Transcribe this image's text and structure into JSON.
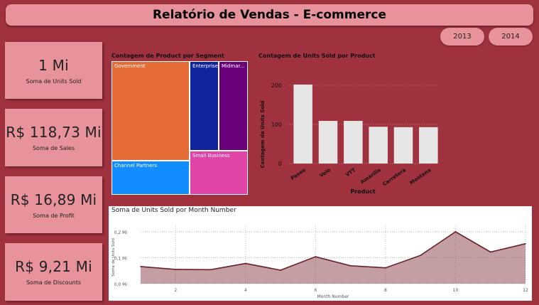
{
  "header": {
    "title": "Relatório de Vendas - E-commerce"
  },
  "filters": {
    "years": [
      "2013",
      "2014"
    ]
  },
  "kpis": [
    {
      "value": "1 Mi",
      "label": "Soma de Units Sold"
    },
    {
      "value": "R$ 118,73 Mi",
      "label": "Soma de  Sales"
    },
    {
      "value": "R$ 16,89 Mi",
      "label": "Soma de Profit"
    },
    {
      "value": "R$ 9,21 Mi",
      "label": "Soma de Discounts"
    }
  ],
  "treemap": {
    "title": "Contagem de Product por Segment",
    "tiles": [
      {
        "label": "Government",
        "color": "#e66c37"
      },
      {
        "label": "Enterprise",
        "color": "#12239e"
      },
      {
        "label": "Midmar...",
        "color": "#6b007b"
      },
      {
        "label": "Channel Partners",
        "color": "#118dff"
      },
      {
        "label": "Small Business",
        "color": "#e044a7"
      }
    ]
  },
  "bar_panel": {
    "title": "Contagem de Units Sold por Product"
  },
  "line_panel": {
    "title": "Soma de Units Sold por Month Number"
  },
  "chart_data": [
    {
      "type": "bar",
      "title": "Contagem de Units Sold por Product",
      "xlabel": "Product",
      "ylabel": "Contagem de Units Sold",
      "categories": [
        "Paseo",
        "Velo",
        "VTT",
        "Amarilla",
        "Carretera",
        "Montana"
      ],
      "values": [
        202,
        109,
        109,
        94,
        93,
        93
      ],
      "ylim": [
        0,
        200
      ],
      "yticks": [
        "0",
        "100",
        "200"
      ],
      "grid": true,
      "color": "#e6e6e6"
    },
    {
      "type": "area",
      "title": "Soma de Units Sold por Month Number",
      "xlabel": "Month Number",
      "ylabel": "Soma de Units Sold",
      "x": [
        1,
        2,
        3,
        4,
        5,
        6,
        7,
        8,
        9,
        10,
        11,
        12
      ],
      "values": [
        0.066,
        0.055,
        0.054,
        0.078,
        0.052,
        0.104,
        0.069,
        0.061,
        0.109,
        0.2,
        0.122,
        0.154
      ],
      "xlim": [
        1,
        12
      ],
      "ylim": [
        0,
        0.2
      ],
      "xticks": [
        "2",
        "4",
        "6",
        "8",
        "10",
        "12"
      ],
      "yticks": [
        "0,0 Mi",
        "0,1 Mi",
        "0,2 Mi"
      ],
      "color": "#7b2a33"
    }
  ]
}
